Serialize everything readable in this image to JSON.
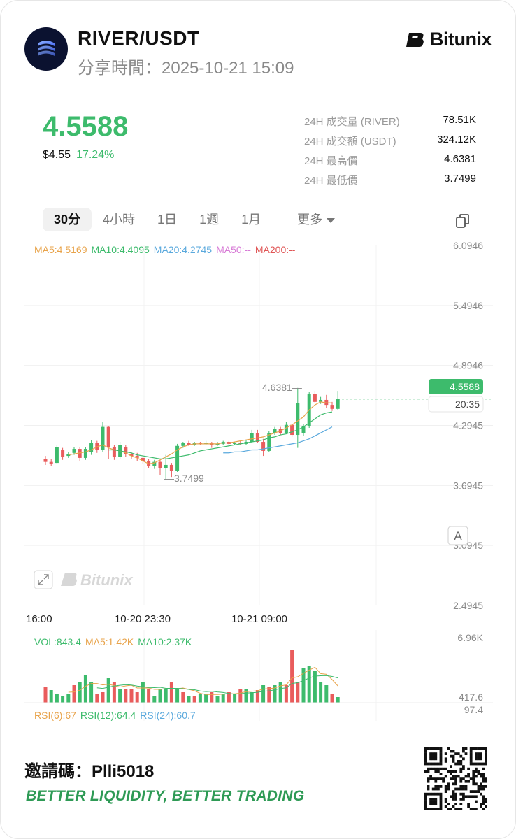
{
  "header": {
    "pair": "RIVER/USDT",
    "share_time": "分享時間：2025-10-21 15:09",
    "brand": "Bitunix"
  },
  "price": {
    "last": "4.5588",
    "usd": "$4.55",
    "change_pct": "17.24%"
  },
  "stats": [
    {
      "label": "24H 成交量 (RIVER)",
      "value": "78.51K"
    },
    {
      "label": "24H 成交額 (USDT)",
      "value": "324.12K"
    },
    {
      "label": "24H 最高價",
      "value": "4.6381"
    },
    {
      "label": "24H 最低價",
      "value": "3.7499"
    }
  ],
  "tabs": [
    "30分",
    "4小時",
    "1日",
    "1週",
    "1月"
  ],
  "tab_more": "更多",
  "ma_legend": [
    {
      "text": "MA5:4.5169",
      "color": "#e8a34a"
    },
    {
      "text": "MA10:4.4095",
      "color": "#3dbb6c"
    },
    {
      "text": "MA20:4.2745",
      "color": "#5aa9dd"
    },
    {
      "text": "MA50:--",
      "color": "#d77ad6"
    },
    {
      "text": "MA200:--",
      "color": "#e05656"
    }
  ],
  "vol_legend": [
    {
      "text": "VOL:843.4",
      "color": "#3dbb6c"
    },
    {
      "text": "MA5:1.42K",
      "color": "#e8a34a"
    },
    {
      "text": "MA10:2.37K",
      "color": "#3dbb6c"
    }
  ],
  "rsi_legend": [
    {
      "text": "RSI(6):67",
      "color": "#e8a34a"
    },
    {
      "text": "RSI(12):64.4",
      "color": "#3dbb6c"
    },
    {
      "text": "RSI(24):60.7",
      "color": "#5aa9dd"
    }
  ],
  "colors": {
    "up": "#3dbb6c",
    "down": "#e95c5c",
    "accent": "#3dbb6c"
  },
  "chart_data": {
    "type": "candlestick",
    "y_ticks": [
      "6.0946",
      "5.4946",
      "4.8946",
      "4.2945",
      "3.6945",
      "3.0945",
      "2.4945"
    ],
    "ylim": [
      2.4945,
      6.0946
    ],
    "x_ticks": [
      "16:00",
      "10-20 23:30",
      "10-21 09:00"
    ],
    "high_label": "4.6381",
    "low_label": "3.7499",
    "last_price_label": "4.5588",
    "countdown": "20:35",
    "watermark": "Bitunix",
    "auto_button": "A",
    "candles": [
      [
        3.96,
        3.93,
        3.99,
        3.9
      ],
      [
        3.93,
        3.91,
        3.96,
        3.89
      ],
      [
        3.92,
        4.08,
        4.1,
        3.91
      ],
      [
        4.05,
        3.98,
        4.07,
        3.95
      ],
      [
        3.99,
        4.01,
        4.03,
        3.97
      ],
      [
        4.02,
        4.06,
        4.08,
        4.0
      ],
      [
        4.06,
        3.97,
        4.08,
        3.94
      ],
      [
        3.97,
        4.06,
        4.08,
        3.95
      ],
      [
        4.03,
        4.12,
        4.15,
        4.0
      ],
      [
        4.12,
        4.05,
        4.14,
        4.02
      ],
      [
        4.05,
        4.28,
        4.33,
        4.03
      ],
      [
        4.28,
        4.08,
        4.29,
        3.96
      ],
      [
        4.08,
        3.98,
        4.1,
        3.95
      ],
      [
        3.98,
        4.1,
        4.13,
        3.96
      ],
      [
        4.08,
        4.01,
        4.1,
        3.98
      ],
      [
        4.01,
        3.99,
        4.03,
        3.96
      ],
      [
        3.99,
        3.97,
        4.02,
        3.94
      ],
      [
        3.97,
        3.94,
        3.99,
        3.91
      ],
      [
        3.94,
        3.89,
        3.96,
        3.87
      ],
      [
        3.89,
        3.93,
        3.95,
        3.86
      ],
      [
        3.93,
        3.87,
        3.95,
        3.8
      ],
      [
        3.87,
        3.9,
        4.0,
        3.75
      ],
      [
        3.9,
        3.84,
        3.92,
        3.78
      ],
      [
        3.84,
        4.09,
        4.11,
        3.83
      ],
      [
        4.09,
        4.12,
        4.13,
        4.07
      ],
      [
        4.12,
        4.1,
        4.14,
        4.09
      ],
      [
        4.1,
        4.12,
        4.13,
        4.09
      ],
      [
        4.12,
        4.11,
        4.13,
        4.1
      ],
      [
        4.11,
        4.12,
        4.14,
        4.1
      ],
      [
        4.12,
        4.1,
        4.13,
        4.07
      ],
      [
        4.1,
        4.11,
        4.13,
        4.09
      ],
      [
        4.11,
        4.13,
        4.14,
        4.1
      ],
      [
        4.13,
        4.11,
        4.14,
        4.09
      ],
      [
        4.11,
        4.12,
        4.13,
        4.1
      ],
      [
        4.12,
        4.11,
        4.14,
        4.1
      ],
      [
        4.11,
        4.13,
        4.15,
        4.1
      ],
      [
        4.13,
        4.22,
        4.25,
        4.12
      ],
      [
        4.22,
        4.13,
        4.25,
        4.12
      ],
      [
        4.13,
        4.04,
        4.16,
        3.99
      ],
      [
        4.04,
        4.22,
        4.24,
        4.03
      ],
      [
        4.22,
        4.26,
        4.28,
        4.2
      ],
      [
        4.26,
        4.22,
        4.28,
        4.2
      ],
      [
        4.22,
        4.3,
        4.33,
        4.21
      ],
      [
        4.3,
        4.2,
        4.31,
        4.18
      ],
      [
        4.2,
        4.52,
        4.67,
        4.07
      ],
      [
        4.22,
        4.29,
        4.31,
        4.19
      ],
      [
        4.29,
        4.61,
        4.63,
        4.27
      ],
      [
        4.61,
        4.53,
        4.64,
        4.52
      ],
      [
        4.53,
        4.55,
        4.58,
        4.51
      ],
      [
        4.55,
        4.5,
        4.6,
        4.47
      ],
      [
        4.5,
        4.46,
        4.53,
        4.44
      ],
      [
        4.46,
        4.56,
        4.64,
        4.45
      ]
    ],
    "ma5_line": [
      4.0,
      4.01,
      4.02,
      4.03,
      4.05,
      4.08,
      4.1,
      4.07,
      4.05,
      4.04,
      4.02,
      3.99,
      3.97,
      3.94,
      3.91,
      3.92,
      3.95,
      3.98,
      4.01,
      4.05,
      4.08,
      4.1,
      4.11,
      4.11,
      4.11,
      4.11,
      4.11,
      4.12,
      4.12,
      4.13,
      4.14,
      4.15,
      4.16,
      4.17,
      4.18,
      4.2,
      4.22,
      4.24,
      4.27,
      4.3,
      4.34,
      4.38,
      4.45,
      4.5,
      4.53,
      4.52,
      4.52
    ],
    "ma10_line": [
      4.05,
      4.05,
      4.04,
      4.03,
      4.02,
      4.0,
      3.99,
      3.98,
      3.97,
      3.96,
      3.96,
      3.97,
      3.98,
      3.99,
      4.0,
      4.02,
      4.04,
      4.05,
      4.06,
      4.07,
      4.08,
      4.09,
      4.1,
      4.11,
      4.12,
      4.13,
      4.14,
      4.15,
      4.17,
      4.18,
      4.2,
      4.21,
      4.23,
      4.25,
      4.28,
      4.32,
      4.36,
      4.4,
      4.42,
      4.43
    ],
    "ma20_line": [
      4.02,
      4.02,
      4.03,
      4.03,
      4.04,
      4.05,
      4.05,
      4.06,
      4.07,
      4.08,
      4.09,
      4.1,
      4.11,
      4.12,
      4.14,
      4.16,
      4.19,
      4.22,
      4.25,
      4.28
    ],
    "volume": [
      {
        "v": 0.23,
        "up": false
      },
      {
        "v": 0.18,
        "up": true
      },
      {
        "v": 0.12,
        "up": true
      },
      {
        "v": 0.1,
        "up": true
      },
      {
        "v": 0.12,
        "up": true
      },
      {
        "v": 0.25,
        "up": false
      },
      {
        "v": 0.3,
        "up": true
      },
      {
        "v": 0.4,
        "up": true
      },
      {
        "v": 0.3,
        "up": true
      },
      {
        "v": 0.12,
        "up": false
      },
      {
        "v": 0.15,
        "up": false
      },
      {
        "v": 0.35,
        "up": true
      },
      {
        "v": 0.3,
        "up": false
      },
      {
        "v": 0.2,
        "up": true
      },
      {
        "v": 0.2,
        "up": false
      },
      {
        "v": 0.2,
        "up": false
      },
      {
        "v": 0.15,
        "up": false
      },
      {
        "v": 0.3,
        "up": true
      },
      {
        "v": 0.2,
        "up": false
      },
      {
        "v": 0.1,
        "up": true
      },
      {
        "v": 0.2,
        "up": true
      },
      {
        "v": 0.2,
        "up": true
      },
      {
        "v": 0.3,
        "up": false
      },
      {
        "v": 0.2,
        "up": true
      },
      {
        "v": 0.15,
        "up": false
      },
      {
        "v": 0.1,
        "up": true
      },
      {
        "v": 0.1,
        "up": false
      },
      {
        "v": 0.12,
        "up": true
      },
      {
        "v": 0.12,
        "up": true
      },
      {
        "v": 0.15,
        "up": false
      },
      {
        "v": 0.1,
        "up": true
      },
      {
        "v": 0.12,
        "up": true
      },
      {
        "v": 0.15,
        "up": false
      },
      {
        "v": 0.12,
        "up": true
      },
      {
        "v": 0.2,
        "up": false
      },
      {
        "v": 0.2,
        "up": true
      },
      {
        "v": 0.15,
        "up": true
      },
      {
        "v": 0.18,
        "up": false
      },
      {
        "v": 0.25,
        "up": true
      },
      {
        "v": 0.22,
        "up": false
      },
      {
        "v": 0.25,
        "up": true
      },
      {
        "v": 0.3,
        "up": true
      },
      {
        "v": 0.25,
        "up": false
      },
      {
        "v": 0.75,
        "up": false
      },
      {
        "v": 0.3,
        "up": false
      },
      {
        "v": 0.5,
        "up": true
      },
      {
        "v": 0.53,
        "up": true
      },
      {
        "v": 0.45,
        "up": true
      },
      {
        "v": 0.3,
        "up": true
      },
      {
        "v": 0.25,
        "up": true
      },
      {
        "v": 0.12,
        "up": false
      },
      {
        "v": 0.08,
        "up": true
      }
    ],
    "vol_ticks": [
      "6.96K",
      "417.6",
      "97.4"
    ]
  },
  "footer": {
    "invite": "邀請碼：Plli5018",
    "slogan": "BETTER LIQUIDITY, BETTER TRADING"
  }
}
